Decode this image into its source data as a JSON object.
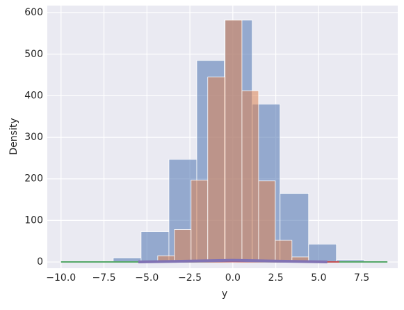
{
  "chart_data": {
    "type": "histogram",
    "xlabel": "y",
    "ylabel": "Density",
    "xlim": [
      -10.8,
      9.6
    ],
    "ylim": [
      -15,
      617
    ],
    "xticks": [
      {
        "value": -10,
        "label": "−10.0"
      },
      {
        "value": -7.5,
        "label": "−7.5"
      },
      {
        "value": -5,
        "label": "−5.0"
      },
      {
        "value": -2.5,
        "label": "−2.5"
      },
      {
        "value": 0,
        "label": "0.0"
      },
      {
        "value": 2.5,
        "label": "2.5"
      },
      {
        "value": 5,
        "label": "5.0"
      },
      {
        "value": 7.5,
        "label": "7.5"
      }
    ],
    "yticks": [
      0,
      100,
      200,
      300,
      400,
      500,
      600
    ],
    "grid": true,
    "series": [
      {
        "color": "#4c72b0",
        "bins": [
          -6.96,
          -5.34,
          -3.72,
          -2.1,
          -0.49,
          1.13,
          2.75,
          4.41,
          6.03,
          7.65
        ],
        "values": [
          10,
          73,
          247,
          485,
          582,
          380,
          165,
          43,
          5
        ]
      },
      {
        "color": "#dd8452",
        "bins": [
          -4.37,
          -3.4,
          -2.43,
          -1.46,
          -0.45,
          0.53,
          1.5,
          2.47,
          3.44,
          4.41
        ],
        "values": [
          15,
          78,
          197,
          445,
          582,
          412,
          195,
          52,
          12
        ]
      }
    ],
    "lines": [
      {
        "color": "#55a868",
        "width": 2,
        "x": [
          -10,
          -5,
          0,
          5,
          9
        ],
        "values": [
          0,
          0,
          1,
          0,
          0
        ]
      },
      {
        "color": "#c44e52",
        "width": 2,
        "x": [
          -5.5,
          0,
          6.2
        ],
        "values": [
          0,
          1,
          0
        ]
      },
      {
        "color": "#8172b3",
        "width": 4,
        "x": [
          -5.5,
          -2.75,
          0,
          2.75,
          5.5
        ],
        "values": [
          0,
          2,
          4,
          2,
          0
        ]
      }
    ]
  }
}
